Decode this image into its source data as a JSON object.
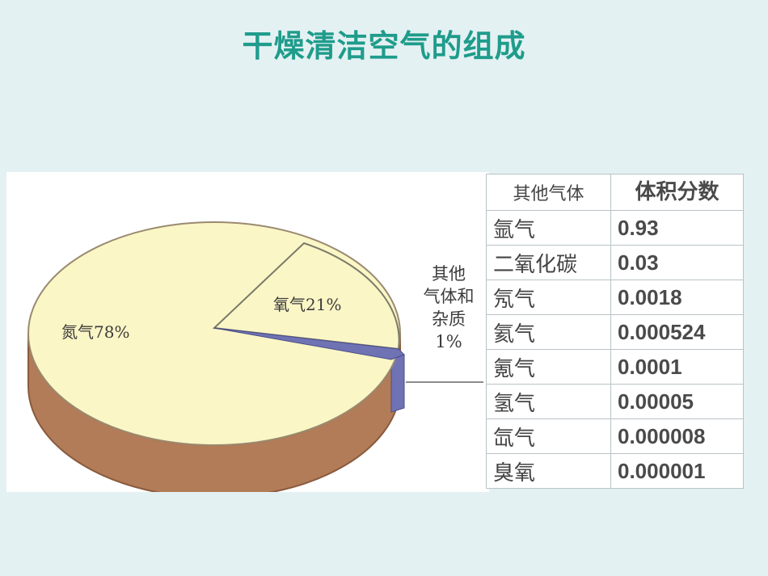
{
  "title": "干燥清洁空气的组成",
  "pie": {
    "nitrogen_label": "氮气78%",
    "oxygen_label": "氧气21%",
    "other_label": [
      "其他",
      "气体和",
      "杂质",
      "1%"
    ],
    "colors": {
      "top": "#fbf6c6",
      "side": "#b27c58",
      "other": "#6f73b3"
    }
  },
  "table": {
    "header": {
      "name": "其他气体",
      "value": "体积分数"
    },
    "rows": [
      {
        "name": "氩气",
        "value": "0.93"
      },
      {
        "name": "二氧化碳",
        "value": "0.03"
      },
      {
        "name": "氖气",
        "value": "0.0018"
      },
      {
        "name": "氦气",
        "value": "0.000524"
      },
      {
        "name": "氪气",
        "value": "0.0001"
      },
      {
        "name": "氢气",
        "value": "0.00005"
      },
      {
        "name": "氙气",
        "value": "0.000008"
      },
      {
        "name": "臭氧",
        "value": "0.000001"
      }
    ]
  }
}
